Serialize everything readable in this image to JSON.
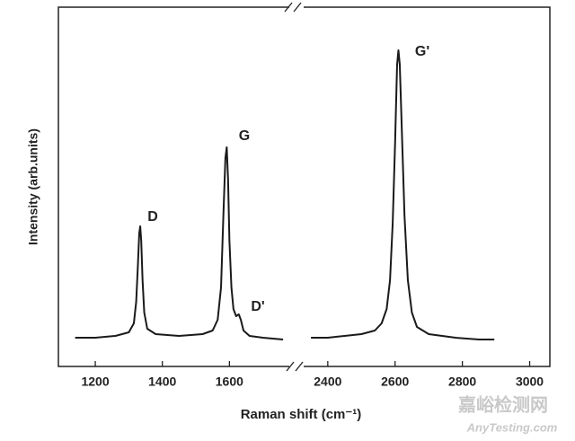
{
  "chart_data": {
    "type": "line",
    "x_label": "Raman shift (cm⁻¹)",
    "y_label": "Intensity (arb.units)",
    "ylim": [
      0,
      100
    ],
    "x_segments": [
      {
        "xlim": [
          1090,
          1800
        ],
        "xticks": [
          1200,
          1400,
          1600
        ]
      },
      {
        "xlim": [
          2307,
          3060
        ],
        "xticks": [
          2400,
          2600,
          2800,
          3000
        ]
      }
    ],
    "series": [
      {
        "color": "#1a1a1a",
        "x": [
          1140,
          1200,
          1260,
          1300,
          1315,
          1322,
          1327,
          1331,
          1334,
          1337,
          1341,
          1346,
          1355,
          1380,
          1450,
          1520,
          1550,
          1565,
          1575,
          1582,
          1588,
          1592,
          1596,
          1600,
          1606,
          1612,
          1620,
          1628,
          1634,
          1642,
          1660,
          1700,
          1760
        ],
        "values": [
          8,
          8,
          8.5,
          9.5,
          12,
          18,
          28,
          37,
          39,
          35,
          24,
          15,
          10.5,
          9,
          8.5,
          9,
          10,
          13,
          22,
          42,
          58,
          61,
          52,
          35,
          22,
          16,
          14,
          14.5,
          13,
          10,
          8.5,
          8,
          7.5
        ]
      },
      {
        "color": "#1a1a1a",
        "x": [
          2350,
          2400,
          2450,
          2500,
          2540,
          2560,
          2575,
          2585,
          2593,
          2600,
          2606,
          2610,
          2614,
          2620,
          2628,
          2638,
          2650,
          2665,
          2700,
          2780,
          2850,
          2895
        ],
        "values": [
          8,
          8,
          8.5,
          9,
          10,
          12,
          16,
          24,
          40,
          62,
          84,
          88,
          84,
          66,
          42,
          24,
          15,
          11,
          9,
          8,
          7.5,
          7.5
        ]
      }
    ],
    "annotations": [
      "D",
      "G",
      "D'",
      "G'"
    ],
    "watermark": {
      "brand": "嘉峪检测网",
      "site": "AnyTesting.com"
    }
  }
}
